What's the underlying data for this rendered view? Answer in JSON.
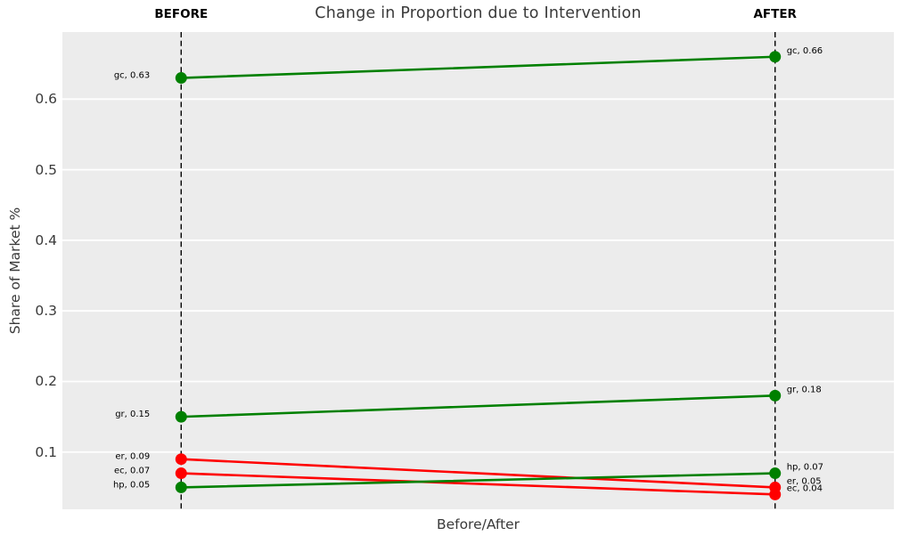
{
  "chart_data": {
    "type": "line",
    "subtype": "slope-chart",
    "title": "Change in Proportion due to Intervention",
    "xlabel": "Before/After",
    "ylabel": "Share of Market %",
    "column_headers": [
      "BEFORE",
      "AFTER"
    ],
    "yticks": [
      "0.1",
      "0.2",
      "0.3",
      "0.4",
      "0.5",
      "0.6"
    ],
    "ylim": [
      0.019,
      0.695
    ],
    "grid": "horizontal-white-on-gray",
    "legend_position": "none",
    "colors": {
      "increase": "#008000",
      "decrease": "#ff0000",
      "plot_background": "#ececec",
      "gridline": "#ffffff",
      "axis_line": "#000000"
    },
    "series": [
      {
        "name": "gc",
        "color": "#008000",
        "before": {
          "value": 0.63,
          "label": "gc, 0.63"
        },
        "after": {
          "value": 0.66,
          "label": "gc, 0.66"
        }
      },
      {
        "name": "gr",
        "color": "#008000",
        "before": {
          "value": 0.15,
          "label": "gr, 0.15"
        },
        "after": {
          "value": 0.18,
          "label": "gr, 0.18"
        }
      },
      {
        "name": "er",
        "color": "#ff0000",
        "before": {
          "value": 0.09,
          "label": "er, 0.09"
        },
        "after": {
          "value": 0.05,
          "label": "er, 0.05"
        }
      },
      {
        "name": "ec",
        "color": "#ff0000",
        "before": {
          "value": 0.07,
          "label": "ec, 0.07"
        },
        "after": {
          "value": 0.04,
          "label": "ec, 0.04"
        }
      },
      {
        "name": "hp",
        "color": "#008000",
        "before": {
          "value": 0.05,
          "label": "hp, 0.05"
        },
        "after": {
          "value": 0.07,
          "label": "hp, 0.07"
        }
      }
    ]
  }
}
